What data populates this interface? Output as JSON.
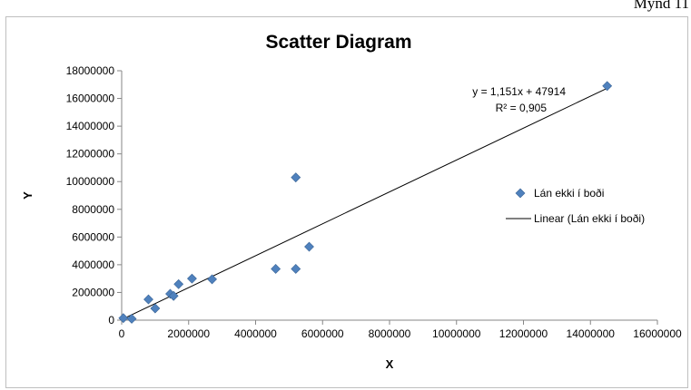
{
  "page": {
    "caption": "Mynd 11"
  },
  "chart_data": {
    "type": "scatter",
    "title": "Scatter Diagram",
    "xlabel": "X",
    "ylabel": "Y",
    "xlim": [
      0,
      16000000
    ],
    "ylim": [
      0,
      18000000
    ],
    "x_ticks": [
      "0",
      "2000000",
      "4000000",
      "6000000",
      "8000000",
      "10000000",
      "12000000",
      "14000000",
      "16000000"
    ],
    "y_ticks": [
      "0",
      "2000000",
      "4000000",
      "6000000",
      "8000000",
      "10000000",
      "12000000",
      "14000000",
      "16000000",
      "18000000"
    ],
    "grid": false,
    "legend_position": "right",
    "series": [
      {
        "name": "Lán ekki í boði",
        "marker": "diamond",
        "color": "#4f81bd",
        "points": [
          {
            "x": 50000,
            "y": 150000
          },
          {
            "x": 300000,
            "y": 100000
          },
          {
            "x": 800000,
            "y": 1500000
          },
          {
            "x": 1000000,
            "y": 850000
          },
          {
            "x": 1450000,
            "y": 1900000
          },
          {
            "x": 1550000,
            "y": 1750000
          },
          {
            "x": 1700000,
            "y": 2600000
          },
          {
            "x": 2100000,
            "y": 3000000
          },
          {
            "x": 2700000,
            "y": 2950000
          },
          {
            "x": 4600000,
            "y": 3700000
          },
          {
            "x": 5200000,
            "y": 10300000
          },
          {
            "x": 5200000,
            "y": 3700000
          },
          {
            "x": 5600000,
            "y": 5300000
          },
          {
            "x": 14500000,
            "y": 16900000
          }
        ]
      }
    ],
    "trendline": {
      "name": "Linear (Lán ekki í boði)",
      "slope": 1.151,
      "intercept": 47914,
      "x_range": [
        0,
        14500000
      ],
      "color": "#000000",
      "equation": "y = 1,151x + 47914",
      "r_squared": "R² = 0,905"
    }
  }
}
